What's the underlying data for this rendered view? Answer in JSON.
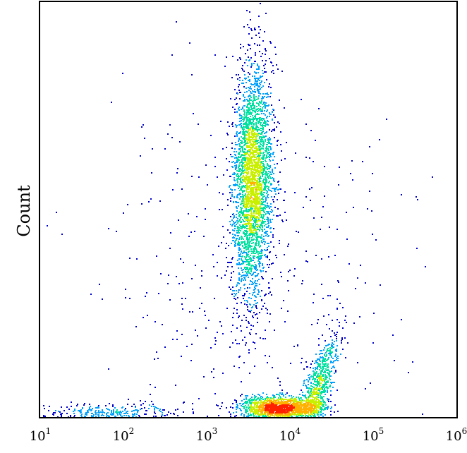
{
  "chart_data": {
    "type": "scatter",
    "subtype": "density-dot-plot",
    "title": "",
    "xlabel": "",
    "ylabel": "Count",
    "x_scale": "log",
    "xlim": [
      10,
      1000000
    ],
    "ylim": [
      0,
      100
    ],
    "grid": false,
    "legend": "none",
    "x_ticks": [
      {
        "value": 10,
        "base": "10",
        "exp": "1"
      },
      {
        "value": 100,
        "base": "10",
        "exp": "2"
      },
      {
        "value": 1000,
        "base": "10",
        "exp": "3"
      },
      {
        "value": 10000,
        "base": "10",
        "exp": "4"
      },
      {
        "value": 100000,
        "base": "10",
        "exp": "5"
      },
      {
        "value": 1000000,
        "base": "10",
        "exp": "6"
      }
    ],
    "density_colors": [
      "#0000cc",
      "#00a0ff",
      "#00e0a0",
      "#c8f000",
      "#ffb000",
      "#ff2000"
    ],
    "populations": [
      {
        "name": "upper",
        "x_center": 3500,
        "x_spread_decades": 0.12,
        "y_center": 57,
        "y_spread": 14,
        "tilt": 0.004,
        "points": 3200
      },
      {
        "name": "lower-core",
        "x_center": 7500,
        "x_spread_decades": 0.22,
        "y_center": 2.5,
        "y_spread": 1.5,
        "tilt": 0.0,
        "points": 1400
      },
      {
        "name": "lower-rising-arm",
        "x_center": 25000,
        "x_spread_decades": 0.08,
        "y_center": 12,
        "y_spread": 9,
        "tilt": 0.015,
        "points": 700
      },
      {
        "name": "left-baseline",
        "x_center": 60,
        "x_spread_decades": 0.45,
        "y_center": 1.2,
        "y_spread": 1.2,
        "tilt": 0.0,
        "points": 260
      },
      {
        "name": "background",
        "x_center": 3000,
        "x_spread_decades": 0.9,
        "y_center": 30,
        "y_spread": 25,
        "tilt": 0.0,
        "points": 450
      }
    ]
  }
}
